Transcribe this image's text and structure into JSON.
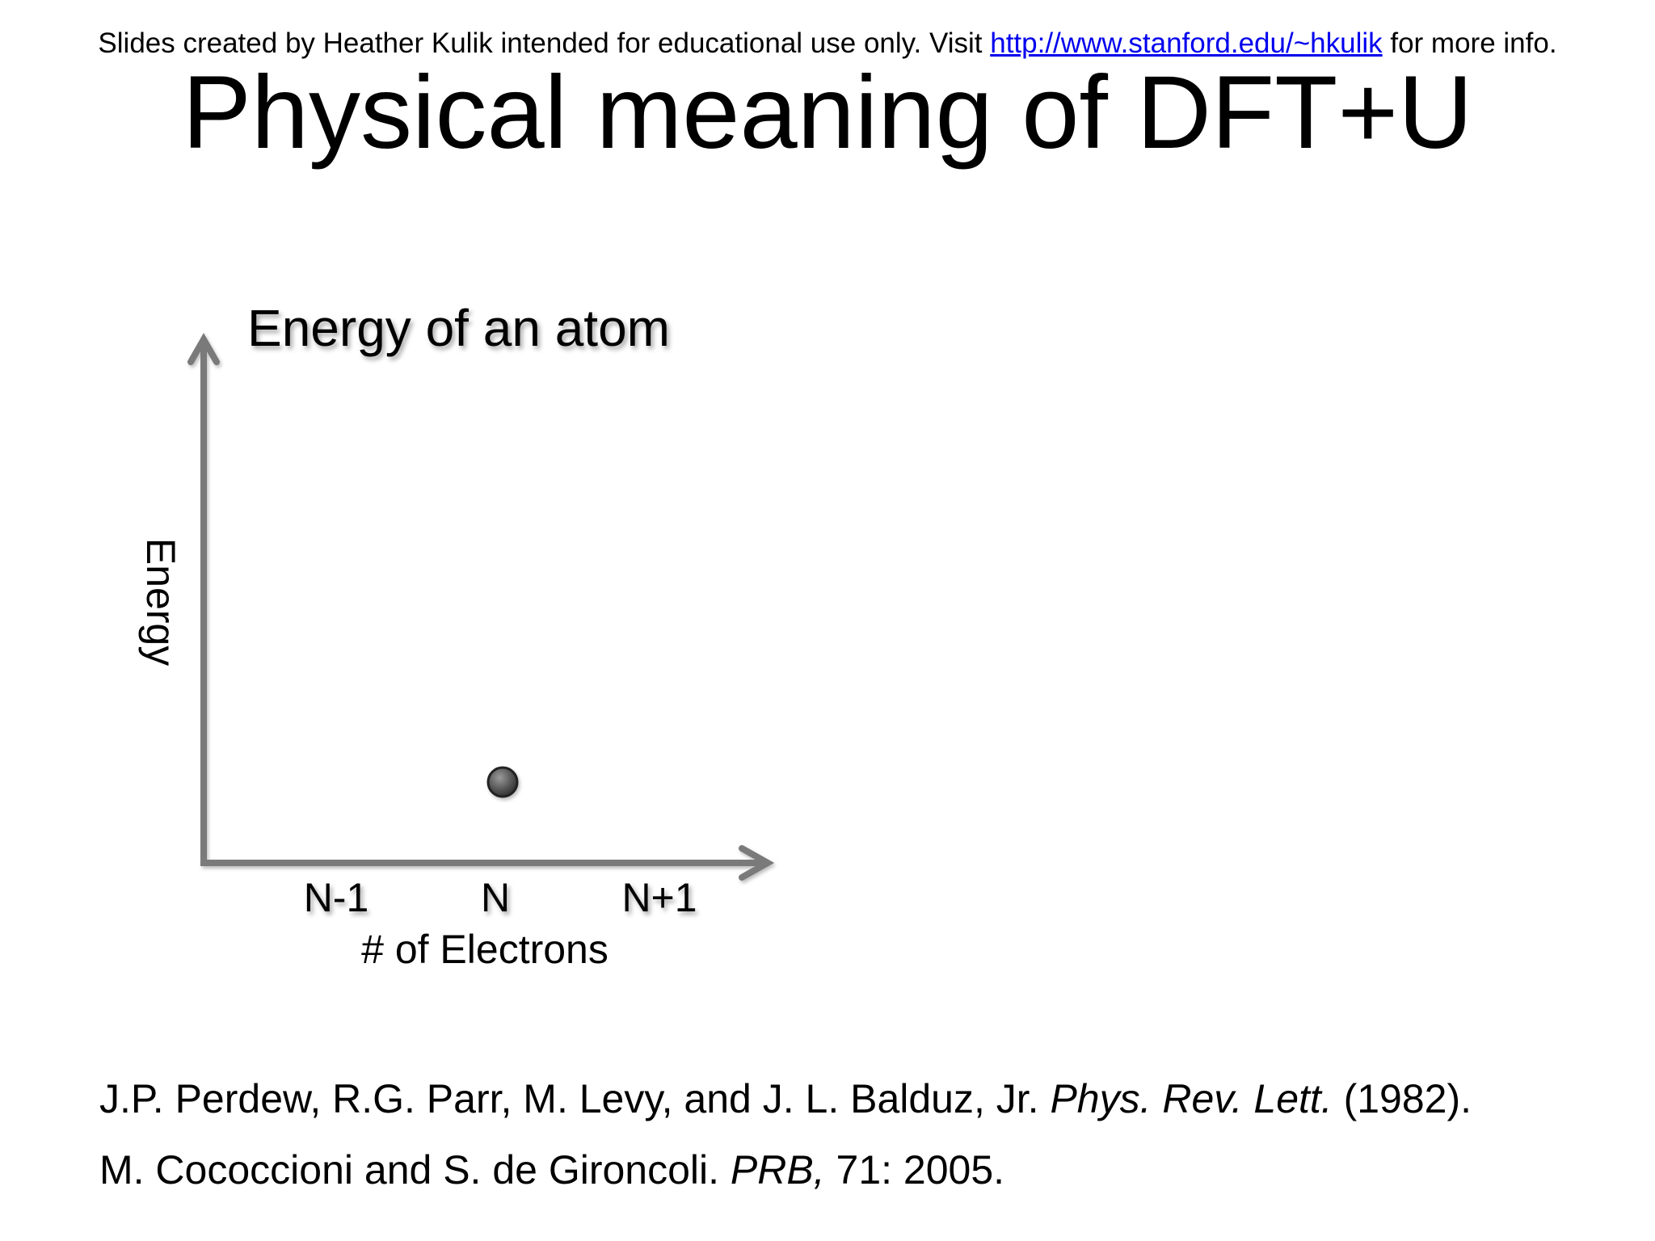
{
  "header": {
    "prefix": "Slides created by Heather Kulik intended for educational use only. Visit ",
    "link_text": "http://www.stanford.edu/~hkulik",
    "suffix": " for more info."
  },
  "slide_title": "Physical meaning of DFT+U",
  "diagram": {
    "title": "Energy of an atom",
    "y_axis_label": "Energy",
    "x_axis_label": "# of Electrons",
    "x_ticks": [
      "N-1",
      "N",
      "N+1"
    ],
    "points": [
      {
        "x": "N"
      }
    ],
    "colors": {
      "axis": "#7a7a7a",
      "point": "#555555"
    }
  },
  "references": [
    {
      "authors": "J.P. Perdew, R.G. Parr, M. Levy, and J. L. Balduz, Jr. ",
      "journal": "Phys. Rev. Lett.",
      "details": " (1982)."
    },
    {
      "authors": "M. Cococcioni and S. de Gironcoli. ",
      "journal": "PRB,",
      "details": " 71: 2005."
    }
  ]
}
